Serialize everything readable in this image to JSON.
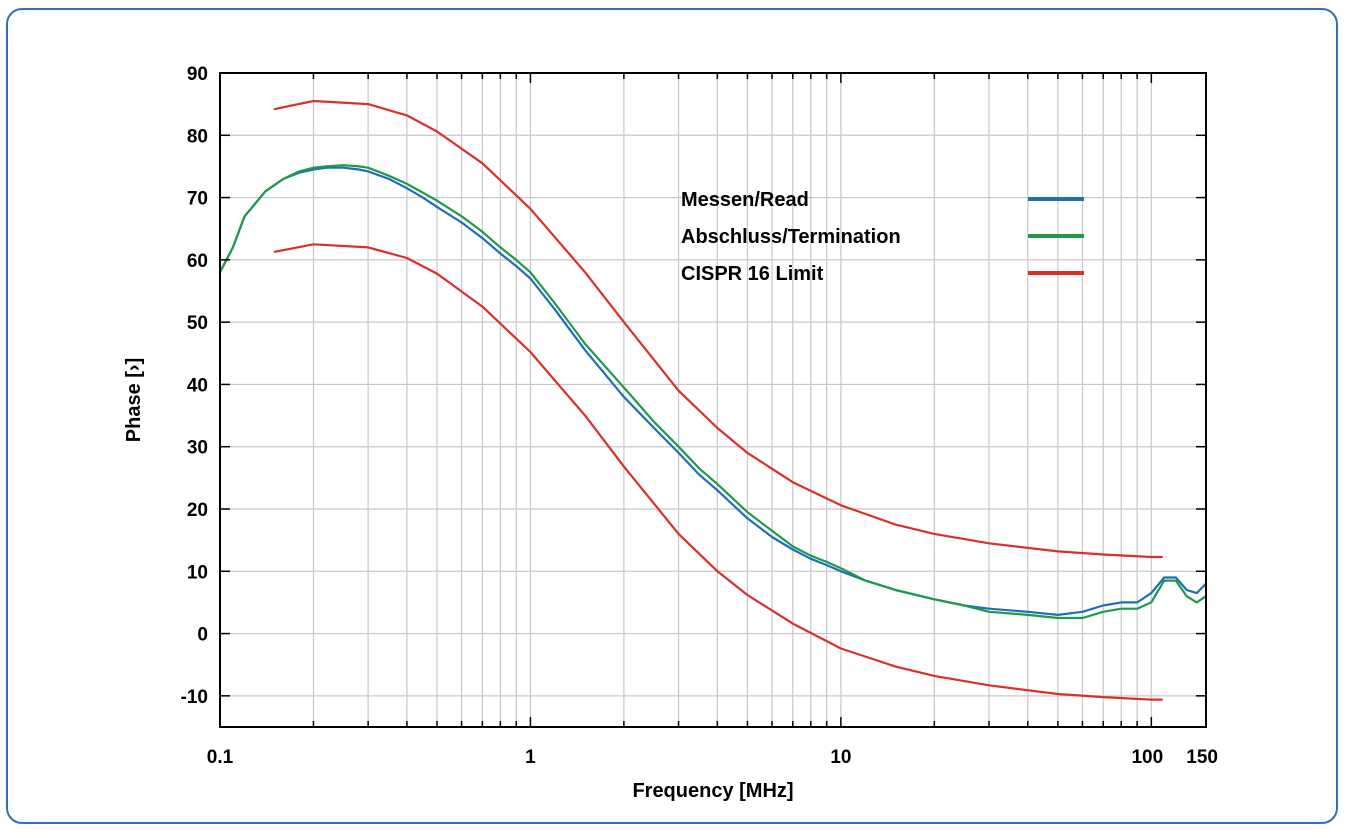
{
  "chart_data": {
    "type": "line",
    "xlabel": "Frequency [MHz]",
    "ylabel": "Phase [›]",
    "x_scale": "log",
    "xlim": [
      0.1,
      150
    ],
    "ylim": [
      -15,
      90
    ],
    "x_ticks": [
      0.1,
      1,
      10,
      100,
      150
    ],
    "x_tick_labels": [
      "0.1",
      "1",
      "10",
      "100",
      "150"
    ],
    "y_ticks": [
      -10,
      0,
      10,
      20,
      30,
      40,
      50,
      60,
      70,
      80,
      90
    ],
    "y_tick_labels": [
      "-10",
      "0",
      "10",
      "20",
      "30",
      "40",
      "50",
      "60",
      "70",
      "80",
      "90"
    ],
    "grid": true,
    "legend_position": "top-right",
    "series": [
      {
        "name": "Messen/Read",
        "color": "#1f6fb8",
        "x": [
          0.1,
          0.11,
          0.12,
          0.14,
          0.16,
          0.18,
          0.2,
          0.22,
          0.25,
          0.28,
          0.3,
          0.35,
          0.4,
          0.45,
          0.5,
          0.6,
          0.7,
          0.8,
          0.9,
          1,
          1.2,
          1.5,
          2,
          2.5,
          3,
          3.5,
          4,
          5,
          6,
          7,
          8,
          9,
          10,
          12,
          15,
          20,
          25,
          30,
          40,
          50,
          60,
          70,
          80,
          90,
          100,
          110,
          120,
          130,
          140,
          150
        ],
        "y": [
          58,
          62,
          67,
          71,
          73,
          74,
          74.5,
          74.8,
          74.8,
          74.5,
          74.2,
          73,
          71.5,
          70,
          68.5,
          66,
          63.5,
          61,
          59,
          57,
          52,
          45.5,
          38,
          33,
          29,
          25.5,
          23,
          18.5,
          15.5,
          13.5,
          12,
          11,
          10,
          8.5,
          7,
          5.5,
          4.5,
          4,
          3.5,
          3,
          3.5,
          4.5,
          5,
          5,
          6.5,
          9,
          9,
          7,
          6.5,
          8
        ]
      },
      {
        "name": "Abschluss/Termination",
        "color": "#1f9a4a",
        "x": [
          0.1,
          0.11,
          0.12,
          0.14,
          0.16,
          0.18,
          0.2,
          0.22,
          0.25,
          0.28,
          0.3,
          0.35,
          0.4,
          0.45,
          0.5,
          0.6,
          0.7,
          0.8,
          0.9,
          1,
          1.2,
          1.5,
          2,
          2.5,
          3,
          3.5,
          4,
          5,
          6,
          7,
          8,
          9,
          10,
          12,
          15,
          20,
          25,
          30,
          40,
          50,
          60,
          70,
          80,
          90,
          100,
          110,
          120,
          130,
          140,
          150
        ],
        "y": [
          58,
          62,
          67,
          71,
          73,
          74.2,
          74.8,
          75,
          75.2,
          75,
          74.8,
          73.5,
          72.2,
          70.8,
          69.5,
          67,
          64.5,
          62,
          60,
          58,
          53,
          46.5,
          39.5,
          34,
          30,
          26.5,
          24,
          19.5,
          16.5,
          14,
          12.5,
          11.5,
          10.5,
          8.5,
          7,
          5.5,
          4.5,
          3.5,
          3,
          2.5,
          2.5,
          3.5,
          4,
          4,
          5,
          8.5,
          8.5,
          6,
          5,
          6
        ]
      },
      {
        "name": "CISPR 16 Limit",
        "color": "#d9302a",
        "x": [
          0.15,
          0.2,
          0.3,
          0.4,
          0.5,
          0.7,
          1,
          1.5,
          2,
          3,
          4,
          5,
          7,
          10,
          15,
          20,
          30,
          50,
          70,
          100,
          108
        ],
        "y": [
          84.2,
          85.5,
          85,
          83.2,
          80.6,
          75.5,
          68.2,
          58,
          50,
          39,
          33,
          29,
          24.3,
          20.6,
          17.5,
          16,
          14.5,
          13.2,
          12.7,
          12.3,
          12.3
        ]
      },
      {
        "color": "#d9302a",
        "x": [
          0.15,
          0.2,
          0.3,
          0.4,
          0.5,
          0.7,
          1,
          1.5,
          2,
          3,
          4,
          5,
          7,
          10,
          15,
          20,
          30,
          50,
          70,
          100,
          108
        ],
        "y": [
          61.3,
          62.5,
          62,
          60.3,
          57.8,
          52.5,
          45.2,
          35,
          26.8,
          16,
          10,
          6.2,
          1.6,
          -2.4,
          -5.3,
          -6.8,
          -8.3,
          -9.7,
          -10.2,
          -10.6,
          -10.6
        ]
      }
    ]
  }
}
